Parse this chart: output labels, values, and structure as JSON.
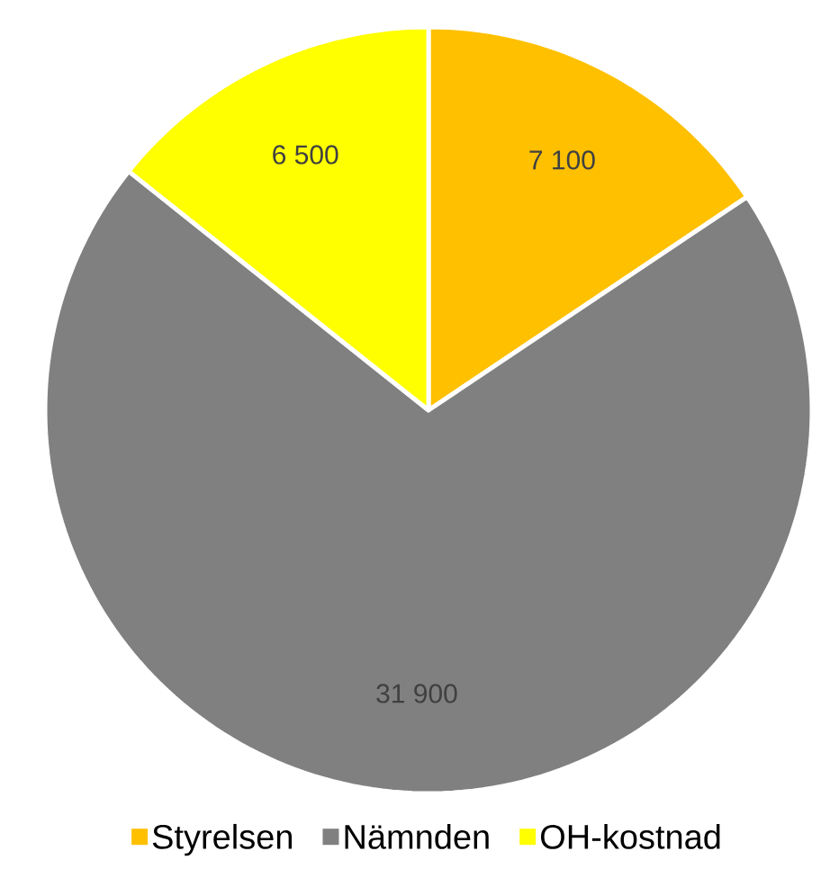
{
  "chart_data": {
    "type": "pie",
    "categories": [
      "Styrelsen",
      "Nämnden",
      "OH-kostnad"
    ],
    "values": [
      7100,
      31900,
      6500
    ],
    "colors": [
      "#ffc000",
      "#808080",
      "#ffff00"
    ],
    "value_labels": [
      "7 100",
      "31 900",
      "6 500"
    ],
    "legend": "bottom"
  }
}
